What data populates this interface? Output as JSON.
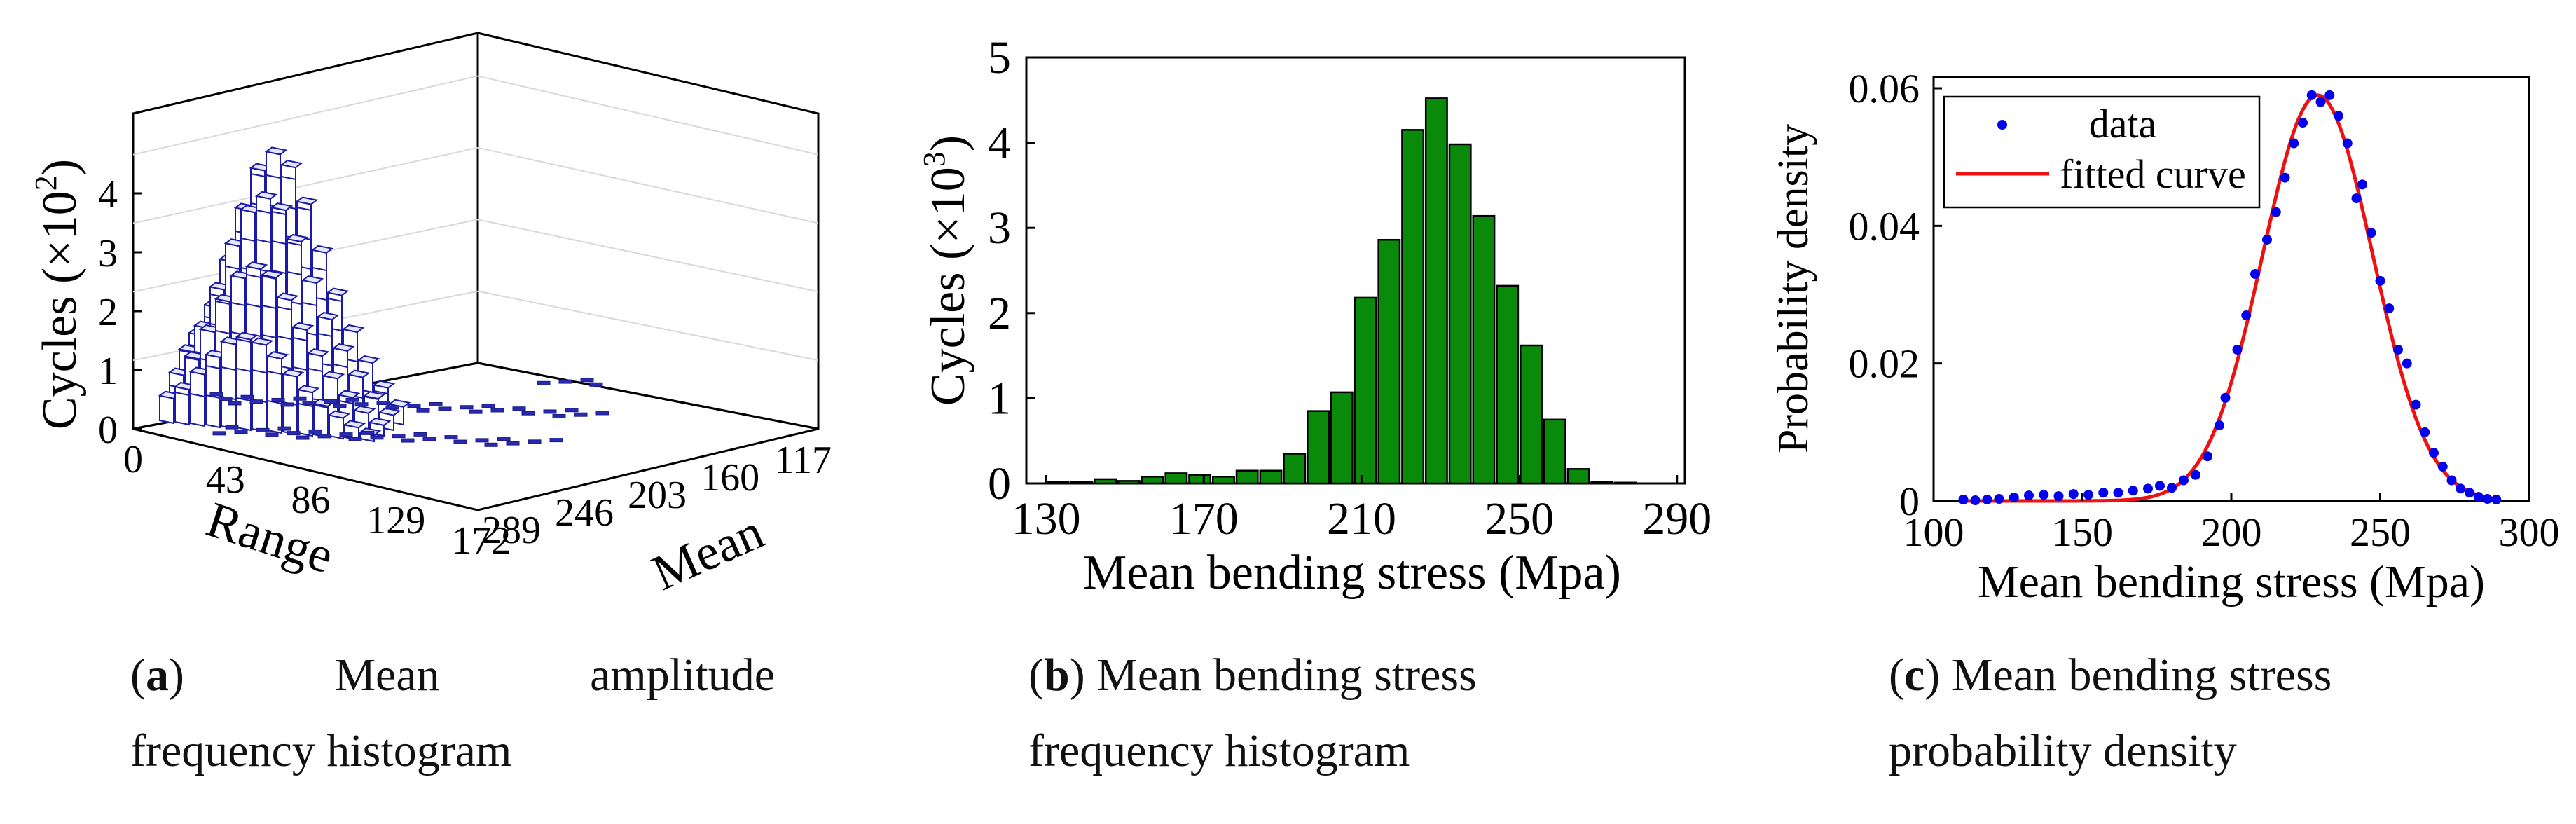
{
  "chart_data": [
    {
      "id": "a",
      "type": "bar3d",
      "zlabel": "Cycles (×10",
      "zlabel_exp": "2",
      "zlabel_close": ")",
      "xlabel": "Range",
      "ylabel": "Mean",
      "z_ticks": [
        "0",
        "1",
        "2",
        "3",
        "4"
      ],
      "range_ticks": [
        "0",
        "43",
        "86",
        "129",
        "172"
      ],
      "mean_ticks": [
        "289",
        "246",
        "203",
        "160",
        "117"
      ],
      "ridge_profile": [
        1.2,
        1.7,
        2.5,
        3.4,
        4.1,
        4.4,
        4.2,
        3.6,
        2.8,
        2.1,
        1.5,
        1.0,
        0.6,
        0.3
      ]
    },
    {
      "id": "b",
      "type": "bar",
      "ylabel": "Cycles (×10",
      "ylabel_exp": "3",
      "ylabel_close": ")",
      "xlabel": "Mean bending stress (Mpa)",
      "xticks": [
        "130",
        "170",
        "210",
        "250",
        "290"
      ],
      "yticks": [
        "0",
        "1",
        "2",
        "3",
        "4",
        "5"
      ],
      "xlim": [
        125,
        292
      ],
      "ylim": [
        0,
        5
      ],
      "bar_width": 5.4,
      "bar_color": "#0a8a0a",
      "x": [
        133,
        139,
        145,
        151,
        157,
        163,
        169,
        175,
        181,
        187,
        193,
        199,
        205,
        211,
        217,
        223,
        229,
        235,
        241,
        247,
        253,
        259,
        265,
        271,
        277
      ],
      "values": [
        0.02,
        0.02,
        0.05,
        0.03,
        0.08,
        0.12,
        0.1,
        0.08,
        0.15,
        0.15,
        0.35,
        0.85,
        1.07,
        2.18,
        2.86,
        4.15,
        4.52,
        3.98,
        3.14,
        2.32,
        1.62,
        0.75,
        0.17,
        0.02,
        0.01
      ]
    },
    {
      "id": "c",
      "type": "scatter+line",
      "ylabel": "Probability density",
      "xlabel": "Mean bending stress (Mpa)",
      "xticks": [
        "100",
        "150",
        "200",
        "250",
        "300"
      ],
      "yticks": [
        "0",
        "0.02",
        "0.04",
        "0.06"
      ],
      "xlim": [
        100,
        300
      ],
      "ylim": [
        0,
        0.06
      ],
      "legend": {
        "position": "top-left",
        "data_label": "data",
        "fit_label": "fitted curve"
      },
      "fit": {
        "mean": 229,
        "sigma": 18.5,
        "peak": 0.059
      },
      "data_color": "#0000ee",
      "fit_color": "#ee1111",
      "points": [
        [
          110,
          0.0002
        ],
        [
          114,
          0.0001
        ],
        [
          118,
          0.0002
        ],
        [
          122,
          0.0003
        ],
        [
          127,
          0.0005
        ],
        [
          132,
          0.0008
        ],
        [
          137,
          0.0009
        ],
        [
          142,
          0.0007
        ],
        [
          147,
          0.001
        ],
        [
          152,
          0.0009
        ],
        [
          157,
          0.0012
        ],
        [
          162,
          0.0012
        ],
        [
          167,
          0.0015
        ],
        [
          172,
          0.0018
        ],
        [
          176,
          0.0022
        ],
        [
          180,
          0.0019
        ],
        [
          184,
          0.003
        ],
        [
          188,
          0.0038
        ],
        [
          192,
          0.0065
        ],
        [
          196,
          0.011
        ],
        [
          198,
          0.015
        ],
        [
          202,
          0.022
        ],
        [
          205,
          0.027
        ],
        [
          208,
          0.033
        ],
        [
          212,
          0.038
        ],
        [
          215,
          0.042
        ],
        [
          218,
          0.047
        ],
        [
          221,
          0.052
        ],
        [
          224,
          0.055
        ],
        [
          227,
          0.059
        ],
        [
          230,
          0.058
        ],
        [
          233,
          0.059
        ],
        [
          236,
          0.056
        ],
        [
          239,
          0.052
        ],
        [
          242,
          0.044
        ],
        [
          244,
          0.046
        ],
        [
          247,
          0.039
        ],
        [
          250,
          0.032
        ],
        [
          253,
          0.028
        ],
        [
          256,
          0.022
        ],
        [
          259,
          0.02
        ],
        [
          262,
          0.014
        ],
        [
          265,
          0.01
        ],
        [
          268,
          0.007
        ],
        [
          271,
          0.005
        ],
        [
          274,
          0.003
        ],
        [
          277,
          0.0018
        ],
        [
          280,
          0.0012
        ],
        [
          283,
          0.0006
        ],
        [
          286,
          0.0003
        ],
        [
          289,
          0.0002
        ]
      ]
    }
  ],
  "captions": {
    "a": {
      "label": "a",
      "line1_words": [
        "Mean",
        "amplitude"
      ],
      "line2": "frequency histogram"
    },
    "b": {
      "label": "b",
      "line1": "Mean bending stress",
      "line2": "frequency histogram"
    },
    "c": {
      "label": "c",
      "line1": "Mean bending stress",
      "line2": "probability density"
    }
  }
}
